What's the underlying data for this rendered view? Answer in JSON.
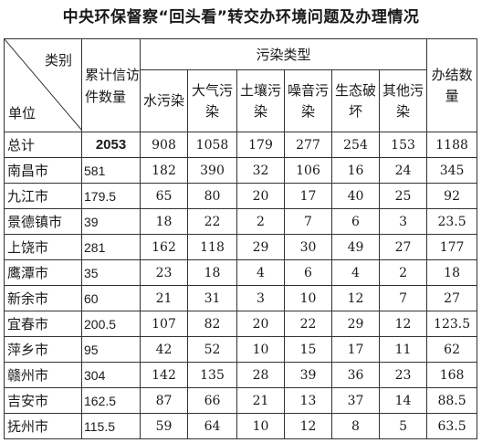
{
  "title": "中央环保督察“回头看”转交办环境问题及办理情况",
  "header": {
    "category_label": "类别",
    "unit_label": "单位",
    "cumulative_label": "累计信访件数量",
    "pollution_type_label": "污染类型",
    "types": [
      "水污染",
      "大气污染",
      "土壤污染",
      "噪音污染",
      "生态破坏",
      "其他污染"
    ],
    "closed_label": "办结数量"
  },
  "rows": [
    {
      "unit": "总计",
      "cumulative": "2053",
      "water": "908",
      "air": "1058",
      "soil": "179",
      "noise": "277",
      "eco": "254",
      "other": "153",
      "closed": "1188"
    },
    {
      "unit": "南昌市",
      "cumulative": "581",
      "water": "182",
      "air": "390",
      "soil": "32",
      "noise": "106",
      "eco": "16",
      "other": "24",
      "closed": "345"
    },
    {
      "unit": "九江市",
      "cumulative": "179.5",
      "water": "65",
      "air": "80",
      "soil": "20",
      "noise": "17",
      "eco": "40",
      "other": "25",
      "closed": "92"
    },
    {
      "unit": "景德镇市",
      "cumulative": "39",
      "water": "18",
      "air": "22",
      "soil": "2",
      "noise": "7",
      "eco": "6",
      "other": "3",
      "closed": "23.5"
    },
    {
      "unit": "上饶市",
      "cumulative": "281",
      "water": "162",
      "air": "118",
      "soil": "29",
      "noise": "30",
      "eco": "49",
      "other": "27",
      "closed": "177"
    },
    {
      "unit": "鹰潭市",
      "cumulative": "35",
      "water": "23",
      "air": "18",
      "soil": "4",
      "noise": "6",
      "eco": "4",
      "other": "2",
      "closed": "18"
    },
    {
      "unit": "新余市",
      "cumulative": "60",
      "water": "21",
      "air": "31",
      "soil": "3",
      "noise": "10",
      "eco": "12",
      "other": "7",
      "closed": "27"
    },
    {
      "unit": "宜春市",
      "cumulative": "200.5",
      "water": "107",
      "air": "82",
      "soil": "20",
      "noise": "22",
      "eco": "29",
      "other": "12",
      "closed": "123.5"
    },
    {
      "unit": "萍乡市",
      "cumulative": "95",
      "water": "42",
      "air": "52",
      "soil": "10",
      "noise": "15",
      "eco": "17",
      "other": "11",
      "closed": "62"
    },
    {
      "unit": "赣州市",
      "cumulative": "304",
      "water": "142",
      "air": "135",
      "soil": "28",
      "noise": "39",
      "eco": "36",
      "other": "23",
      "closed": "168"
    },
    {
      "unit": "吉安市",
      "cumulative": "162.5",
      "water": "87",
      "air": "66",
      "soil": "21",
      "noise": "13",
      "eco": "37",
      "other": "14",
      "closed": "88.5"
    },
    {
      "unit": "抚州市",
      "cumulative": "115.5",
      "water": "59",
      "air": "64",
      "soil": "10",
      "noise": "12",
      "eco": "8",
      "other": "5",
      "closed": "63.5"
    }
  ]
}
